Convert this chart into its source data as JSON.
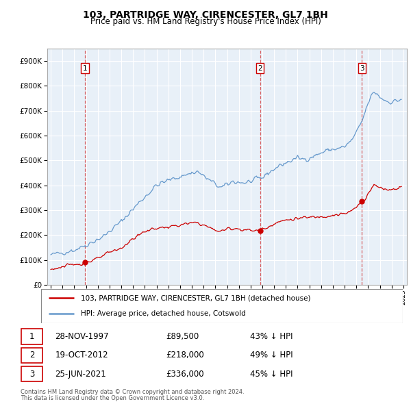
{
  "title": "103, PARTRIDGE WAY, CIRENCESTER, GL7 1BH",
  "subtitle": "Price paid vs. HM Land Registry's House Price Index (HPI)",
  "legend_line1": "103, PARTRIDGE WAY, CIRENCESTER, GL7 1BH (detached house)",
  "legend_line2": "HPI: Average price, detached house, Cotswold",
  "footer1": "Contains HM Land Registry data © Crown copyright and database right 2024.",
  "footer2": "This data is licensed under the Open Government Licence v3.0.",
  "transactions": [
    {
      "num": 1,
      "date": "28-NOV-1997",
      "price": 89500,
      "pct": "43% ↓ HPI",
      "x": 1997.91
    },
    {
      "num": 2,
      "date": "19-OCT-2012",
      "price": 218000,
      "pct": "49% ↓ HPI",
      "x": 2012.8
    },
    {
      "num": 3,
      "date": "25-JUN-2021",
      "price": 336000,
      "pct": "45% ↓ HPI",
      "x": 2021.48
    }
  ],
  "vline_color": "#cc0000",
  "hpi_color": "#6699cc",
  "price_color": "#cc0000",
  "ylim": [
    0,
    950000
  ],
  "xlim_start": 1994.7,
  "xlim_end": 2025.3,
  "yticks": [
    0,
    100000,
    200000,
    300000,
    400000,
    500000,
    600000,
    700000,
    800000,
    900000
  ],
  "xticks": [
    1995,
    1996,
    1997,
    1998,
    1999,
    2000,
    2001,
    2002,
    2003,
    2004,
    2005,
    2006,
    2007,
    2008,
    2009,
    2010,
    2011,
    2012,
    2013,
    2014,
    2015,
    2016,
    2017,
    2018,
    2019,
    2020,
    2021,
    2022,
    2023,
    2024,
    2025
  ]
}
